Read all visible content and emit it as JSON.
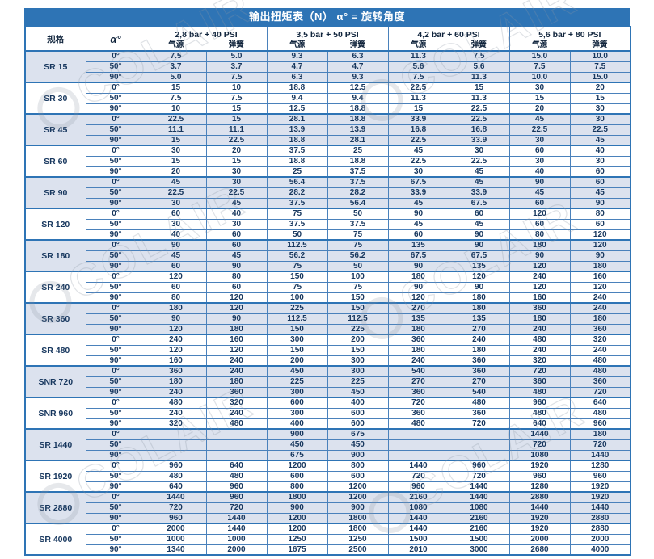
{
  "title": "输出扭矩表（N）    α° = 旋转角度",
  "watermark_text": "COLAIR",
  "colors": {
    "header_blue": "#2e74b5",
    "row_shade": "#dce2ee",
    "border_blue": "#4a81bb",
    "text_navy": "#17375e"
  },
  "table": {
    "spec_header": "规格",
    "angle_header": "α°",
    "pressure_groups": [
      {
        "label": "2,8 bar + 40 PSI",
        "sub": [
          "气源",
          "弹簧"
        ]
      },
      {
        "label": "3,5 bar + 50 PSI",
        "sub": [
          "气源",
          "弹簧"
        ]
      },
      {
        "label": "4,2 bar + 60 PSI",
        "sub": [
          "气源",
          "弹簧"
        ]
      },
      {
        "label": "5,6 bar + 80 PSI",
        "sub": [
          "气源",
          "弹簧"
        ]
      }
    ],
    "angle_rows": [
      "0°",
      "50°",
      "90°"
    ],
    "dashed_row": {
      "model_index": 7,
      "row_index": 0
    },
    "models": [
      {
        "name": "SR 15",
        "shaded": true,
        "rows": [
          [
            "7.5",
            "5.0",
            "9.3",
            "6.3",
            "11.3",
            "7.5",
            "15.0",
            "10.0"
          ],
          [
            "3.7",
            "3.7",
            "4.7",
            "4.7",
            "5.6",
            "5.6",
            "7.5",
            "7.5"
          ],
          [
            "5.0",
            "7.5",
            "6.3",
            "9.3",
            "7.5",
            "11.3",
            "10.0",
            "15.0"
          ]
        ]
      },
      {
        "name": "SR 30",
        "shaded": false,
        "rows": [
          [
            "15",
            "10",
            "18.8",
            "12.5",
            "22.5",
            "15",
            "30",
            "20"
          ],
          [
            "7.5",
            "7.5",
            "9.4",
            "9.4",
            "11.3",
            "11.3",
            "15",
            "15"
          ],
          [
            "10",
            "15",
            "12.5",
            "18.8",
            "15",
            "22.5",
            "20",
            "30"
          ]
        ]
      },
      {
        "name": "SR 45",
        "shaded": true,
        "rows": [
          [
            "22.5",
            "15",
            "28.1",
            "18.8",
            "33.9",
            "22.5",
            "45",
            "30"
          ],
          [
            "11.1",
            "11.1",
            "13.9",
            "13.9",
            "16.8",
            "16.8",
            "22.5",
            "22.5"
          ],
          [
            "15",
            "22.5",
            "18.8",
            "28.1",
            "22.5",
            "33.9",
            "30",
            "45"
          ]
        ]
      },
      {
        "name": "SR 60",
        "shaded": false,
        "rows": [
          [
            "30",
            "20",
            "37.5",
            "25",
            "45",
            "30",
            "60",
            "40"
          ],
          [
            "15",
            "15",
            "18.8",
            "18.8",
            "22.5",
            "22.5",
            "30",
            "30"
          ],
          [
            "20",
            "30",
            "25",
            "37.5",
            "30",
            "45",
            "40",
            "60"
          ]
        ]
      },
      {
        "name": "SR 90",
        "shaded": true,
        "rows": [
          [
            "45",
            "30",
            "56.4",
            "37.5",
            "67.5",
            "45",
            "90",
            "60"
          ],
          [
            "22.5",
            "22.5",
            "28.2",
            "28.2",
            "33.9",
            "33.9",
            "45",
            "45"
          ],
          [
            "30",
            "45",
            "37.5",
            "56.4",
            "45",
            "67.5",
            "60",
            "90"
          ]
        ]
      },
      {
        "name": "SR 120",
        "shaded": false,
        "rows": [
          [
            "60",
            "40",
            "75",
            "50",
            "90",
            "60",
            "120",
            "80"
          ],
          [
            "30",
            "30",
            "37.5",
            "37.5",
            "45",
            "45",
            "60",
            "60"
          ],
          [
            "40",
            "60",
            "50",
            "75",
            "60",
            "90",
            "80",
            "120"
          ]
        ]
      },
      {
        "name": "SR 180",
        "shaded": true,
        "rows": [
          [
            "90",
            "60",
            "112.5",
            "75",
            "135",
            "90",
            "180",
            "120"
          ],
          [
            "45",
            "45",
            "56.2",
            "56.2",
            "67.5",
            "67.5",
            "90",
            "90"
          ],
          [
            "60",
            "90",
            "75",
            "50",
            "90",
            "135",
            "120",
            "180"
          ]
        ]
      },
      {
        "name": "SR 240",
        "shaded": false,
        "rows": [
          [
            "120",
            "80",
            "150",
            "100",
            "180",
            "120",
            "240",
            "160"
          ],
          [
            "60",
            "60",
            "75",
            "75",
            "90",
            "90",
            "120",
            "120"
          ],
          [
            "80",
            "120",
            "100",
            "150",
            "120",
            "180",
            "160",
            "240"
          ]
        ]
      },
      {
        "name": "SR 360",
        "shaded": true,
        "rows": [
          [
            "180",
            "120",
            "225",
            "150",
            "270",
            "180",
            "360",
            "240"
          ],
          [
            "90",
            "90",
            "112.5",
            "112.5",
            "135",
            "135",
            "180",
            "180"
          ],
          [
            "120",
            "180",
            "150",
            "225",
            "180",
            "270",
            "240",
            "360"
          ]
        ]
      },
      {
        "name": "SR 480",
        "shaded": false,
        "rows": [
          [
            "240",
            "160",
            "300",
            "200",
            "360",
            "240",
            "480",
            "320"
          ],
          [
            "120",
            "120",
            "150",
            "150",
            "180",
            "180",
            "240",
            "240"
          ],
          [
            "160",
            "240",
            "200",
            "300",
            "240",
            "360",
            "320",
            "480"
          ]
        ]
      },
      {
        "name": "SNR 720",
        "shaded": true,
        "rows": [
          [
            "360",
            "240",
            "450",
            "300",
            "540",
            "360",
            "720",
            "480"
          ],
          [
            "180",
            "180",
            "225",
            "225",
            "270",
            "270",
            "360",
            "360"
          ],
          [
            "240",
            "360",
            "300",
            "450",
            "360",
            "540",
            "480",
            "720"
          ]
        ]
      },
      {
        "name": "SNR 960",
        "shaded": false,
        "rows": [
          [
            "480",
            "320",
            "600",
            "400",
            "720",
            "480",
            "960",
            "640"
          ],
          [
            "240",
            "240",
            "300",
            "600",
            "360",
            "360",
            "480",
            "480"
          ],
          [
            "320",
            "480",
            "400",
            "600",
            "480",
            "720",
            "640",
            "960"
          ]
        ]
      },
      {
        "name": "SR 1440",
        "shaded": true,
        "rows": [
          [
            "",
            "",
            "900",
            "675",
            "",
            "",
            "1440",
            "180"
          ],
          [
            "",
            "",
            "450",
            "450",
            "",
            "",
            "720",
            "720"
          ],
          [
            "",
            "",
            "675",
            "900",
            "",
            "",
            "1080",
            "1440"
          ]
        ]
      },
      {
        "name": "SR 1920",
        "shaded": false,
        "rows": [
          [
            "960",
            "640",
            "1200",
            "800",
            "1440",
            "960",
            "1920",
            "1280"
          ],
          [
            "480",
            "480",
            "600",
            "600",
            "720",
            "720",
            "960",
            "960"
          ],
          [
            "640",
            "960",
            "800",
            "1200",
            "960",
            "1440",
            "1280",
            "1920"
          ]
        ]
      },
      {
        "name": "SR 2880",
        "shaded": true,
        "rows": [
          [
            "1440",
            "960",
            "1800",
            "1200",
            "2160",
            "1440",
            "2880",
            "1920"
          ],
          [
            "720",
            "720",
            "900",
            "900",
            "1080",
            "1080",
            "1440",
            "1440"
          ],
          [
            "960",
            "1440",
            "1200",
            "1800",
            "1440",
            "2160",
            "1920",
            "2880"
          ]
        ]
      },
      {
        "name": "SR 4000",
        "shaded": false,
        "rows": [
          [
            "2000",
            "1440",
            "1200",
            "1800",
            "1440",
            "2160",
            "1920",
            "2880"
          ],
          [
            "1000",
            "1000",
            "1250",
            "1250",
            "1500",
            "1500",
            "2000",
            "2000"
          ],
          [
            "1340",
            "2000",
            "1675",
            "2500",
            "2010",
            "3000",
            "2680",
            "4000"
          ]
        ]
      }
    ]
  }
}
